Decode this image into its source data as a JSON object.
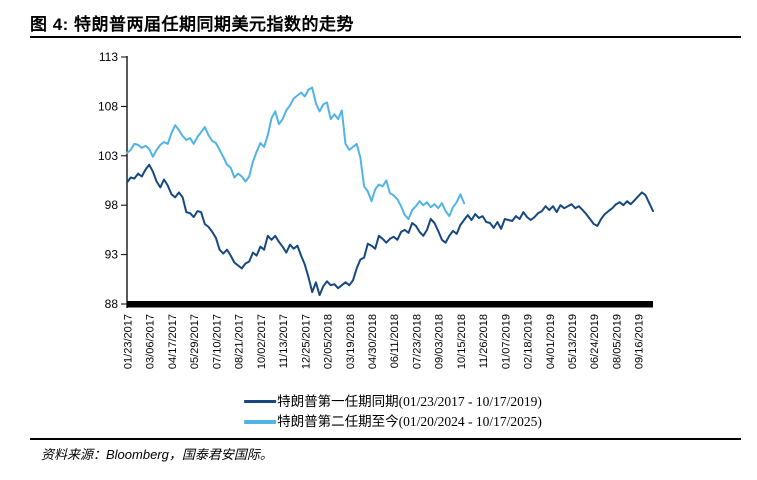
{
  "figure": {
    "title": "图 4: 特朗普两届任期同期美元指数的走势",
    "source": "资料来源：Bloomberg，国泰君安国际。"
  },
  "chart_data": {
    "type": "line",
    "title": "特朗普两届任期同期美元指数的走势",
    "grid": false,
    "legend_position": "bottom",
    "y_axis": {
      "min": 88,
      "max": 113,
      "step": 5,
      "ticks": [
        113,
        108,
        103,
        98,
        93,
        88
      ]
    },
    "x_axis": {
      "unit": "weeks since term start",
      "total_weeks": 142,
      "tick_interval_weeks": 6,
      "tick_labels": [
        "01/23/2017",
        "03/06/2017",
        "04/17/2017",
        "05/29/2017",
        "07/10/2017",
        "08/21/2017",
        "10/02/2017",
        "11/13/2017",
        "12/25/2017",
        "02/05/2018",
        "03/19/2018",
        "04/30/2018",
        "06/11/2018",
        "07/23/2018",
        "09/03/2018",
        "10/15/2018",
        "11/26/2018",
        "01/07/2019",
        "02/18/2019",
        "04/01/2019",
        "05/13/2019",
        "06/24/2019",
        "08/05/2019",
        "09/16/2019"
      ]
    },
    "series": [
      {
        "name": "特朗普第一任期同期(01/23/2017 - 10/17/2019)",
        "color": "#17497f",
        "line_width": 2,
        "start_week": 0,
        "values_weekly": [
          100.3,
          100.8,
          100.7,
          101.2,
          100.9,
          101.6,
          102.1,
          101.4,
          100.4,
          99.8,
          100.6,
          100.0,
          99.1,
          98.8,
          99.3,
          98.8,
          97.3,
          97.2,
          96.8,
          97.4,
          97.3,
          96.1,
          95.8,
          95.3,
          94.7,
          93.5,
          93.1,
          93.5,
          92.9,
          92.2,
          91.9,
          91.6,
          92.1,
          92.3,
          93.2,
          92.9,
          93.8,
          93.5,
          94.9,
          94.5,
          94.9,
          94.3,
          93.8,
          93.2,
          94.0,
          93.6,
          93.9,
          92.9,
          92.0,
          90.7,
          89.2,
          90.2,
          88.9,
          89.8,
          90.3,
          89.9,
          90.0,
          89.6,
          89.9,
          90.2,
          89.9,
          90.4,
          91.6,
          92.5,
          92.7,
          94.1,
          93.9,
          93.6,
          94.9,
          94.6,
          94.2,
          94.6,
          94.8,
          94.5,
          95.3,
          95.5,
          95.2,
          96.2,
          95.9,
          95.3,
          94.9,
          95.5,
          96.6,
          96.2,
          95.4,
          94.5,
          94.2,
          94.9,
          95.4,
          95.1,
          96.0,
          96.5,
          97.0,
          96.5,
          97.1,
          96.7,
          96.9,
          96.3,
          96.2,
          95.7,
          96.3,
          95.6,
          96.6,
          96.5,
          96.4,
          96.9,
          96.6,
          97.3,
          96.8,
          96.5,
          96.8,
          97.2,
          97.4,
          97.9,
          97.5,
          97.9,
          97.3,
          98.0,
          97.7,
          97.9,
          98.1,
          97.7,
          97.9,
          97.5,
          97.1,
          96.6,
          96.1,
          95.9,
          96.6,
          97.1,
          97.4,
          97.7,
          98.1,
          98.3,
          98.0,
          98.4,
          98.1,
          98.5,
          98.9,
          99.3,
          99.0,
          98.2,
          97.4
        ]
      },
      {
        "name": "特朗普第二任期至今(01/20/2024 - 10/17/2025)",
        "color": "#52b3e6",
        "line_width": 2,
        "start_week": 0,
        "values_weekly": [
          103.3,
          103.6,
          104.2,
          104.1,
          103.8,
          104.0,
          103.7,
          102.9,
          103.6,
          104.1,
          104.4,
          104.2,
          105.3,
          106.1,
          105.6,
          105.0,
          104.6,
          104.8,
          104.2,
          104.9,
          105.4,
          105.9,
          105.1,
          104.5,
          104.3,
          103.6,
          102.9,
          102.1,
          101.8,
          100.8,
          101.2,
          100.9,
          100.4,
          100.9,
          102.4,
          103.4,
          104.3,
          103.9,
          105.1,
          106.8,
          107.5,
          106.2,
          106.7,
          107.6,
          108.1,
          108.8,
          109.1,
          109.4,
          109.0,
          109.7,
          109.9,
          108.3,
          107.5,
          108.2,
          108.4,
          106.7,
          107.2,
          106.7,
          107.6,
          104.2,
          103.6,
          103.9,
          104.2,
          102.8,
          99.9,
          99.4,
          98.4,
          99.6,
          100.1,
          99.9,
          100.5,
          99.2,
          99.0,
          98.6,
          97.9,
          97.0,
          96.6,
          97.5,
          97.9,
          98.4,
          98.0,
          98.3,
          97.8,
          98.1,
          97.7,
          98.2,
          97.4,
          96.9,
          97.8,
          98.3,
          99.1,
          98.2
        ]
      }
    ]
  }
}
